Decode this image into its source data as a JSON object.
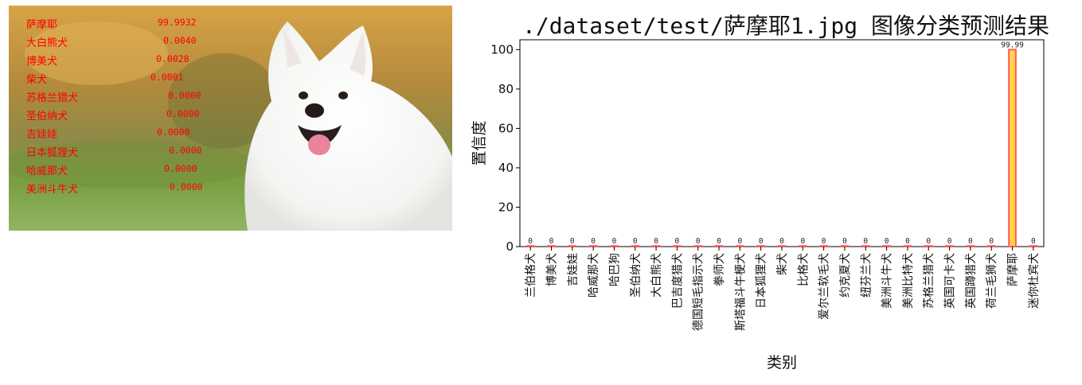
{
  "image_panel": {
    "predictions": [
      {
        "label": "萨摩耶",
        "score": "99.9932"
      },
      {
        "label": "大白熊犬",
        "score": "0.0040"
      },
      {
        "label": "博美犬",
        "score": "0.0028"
      },
      {
        "label": "柴犬",
        "score": "0.0001"
      },
      {
        "label": "苏格兰猎犬",
        "score": "0.0000"
      },
      {
        "label": "圣伯纳犬",
        "score": "0.0000"
      },
      {
        "label": "吉娃娃",
        "score": "0.0000"
      },
      {
        "label": "日本狐狸犬",
        "score": "0.0000"
      },
      {
        "label": "哈威那犬",
        "score": "0.0000"
      },
      {
        "label": "美洲斗牛犬",
        "score": "0.0000"
      }
    ],
    "text_color": "#ff0000"
  },
  "chart_data": {
    "type": "bar",
    "title": "./dataset/test/萨摩耶1.jpg 图像分类预测结果",
    "xlabel": "类别",
    "ylabel": "置信度",
    "ylim": [
      0,
      105
    ],
    "yticks": [
      "0",
      "20",
      "40",
      "60",
      "80",
      "100"
    ],
    "categories": [
      "兰伯格犬",
      "博美犬",
      "吉娃娃",
      "哈威那犬",
      "哈巴狗",
      "圣伯纳犬",
      "大白熊犬",
      "巴吉度猎犬",
      "德国短毛指示犬",
      "拳师犬",
      "斯塔福斗牛梗犬",
      "日本狐狸犬",
      "柴犬",
      "比格犬",
      "爱尔兰软毛犬",
      "约克夏犬",
      "纽芬兰犬",
      "美洲斗牛犬",
      "美洲比特犬",
      "苏格兰猎犬",
      "英国可卡犬",
      "英国蹲猎犬",
      "荷兰毛狮犬",
      "萨摩耶",
      "迷你杜宾犬"
    ],
    "values": [
      0,
      0,
      0,
      0,
      0,
      0,
      0,
      0,
      0,
      0,
      0,
      0,
      0,
      0,
      0,
      0,
      0,
      0,
      0,
      0,
      0,
      0,
      0,
      99.99,
      0
    ],
    "data_labels": [
      "0",
      "0",
      "0",
      "0",
      "0",
      "0",
      "0",
      "0",
      "0",
      "0",
      "0",
      "0",
      "0",
      "0",
      "0",
      "0",
      "0",
      "0",
      "0",
      "0",
      "0",
      "0",
      "0",
      "99.99",
      "0"
    ],
    "bar_color": "#ffd54a",
    "bar_edge_color": "#ff5a5a",
    "grid": false
  }
}
